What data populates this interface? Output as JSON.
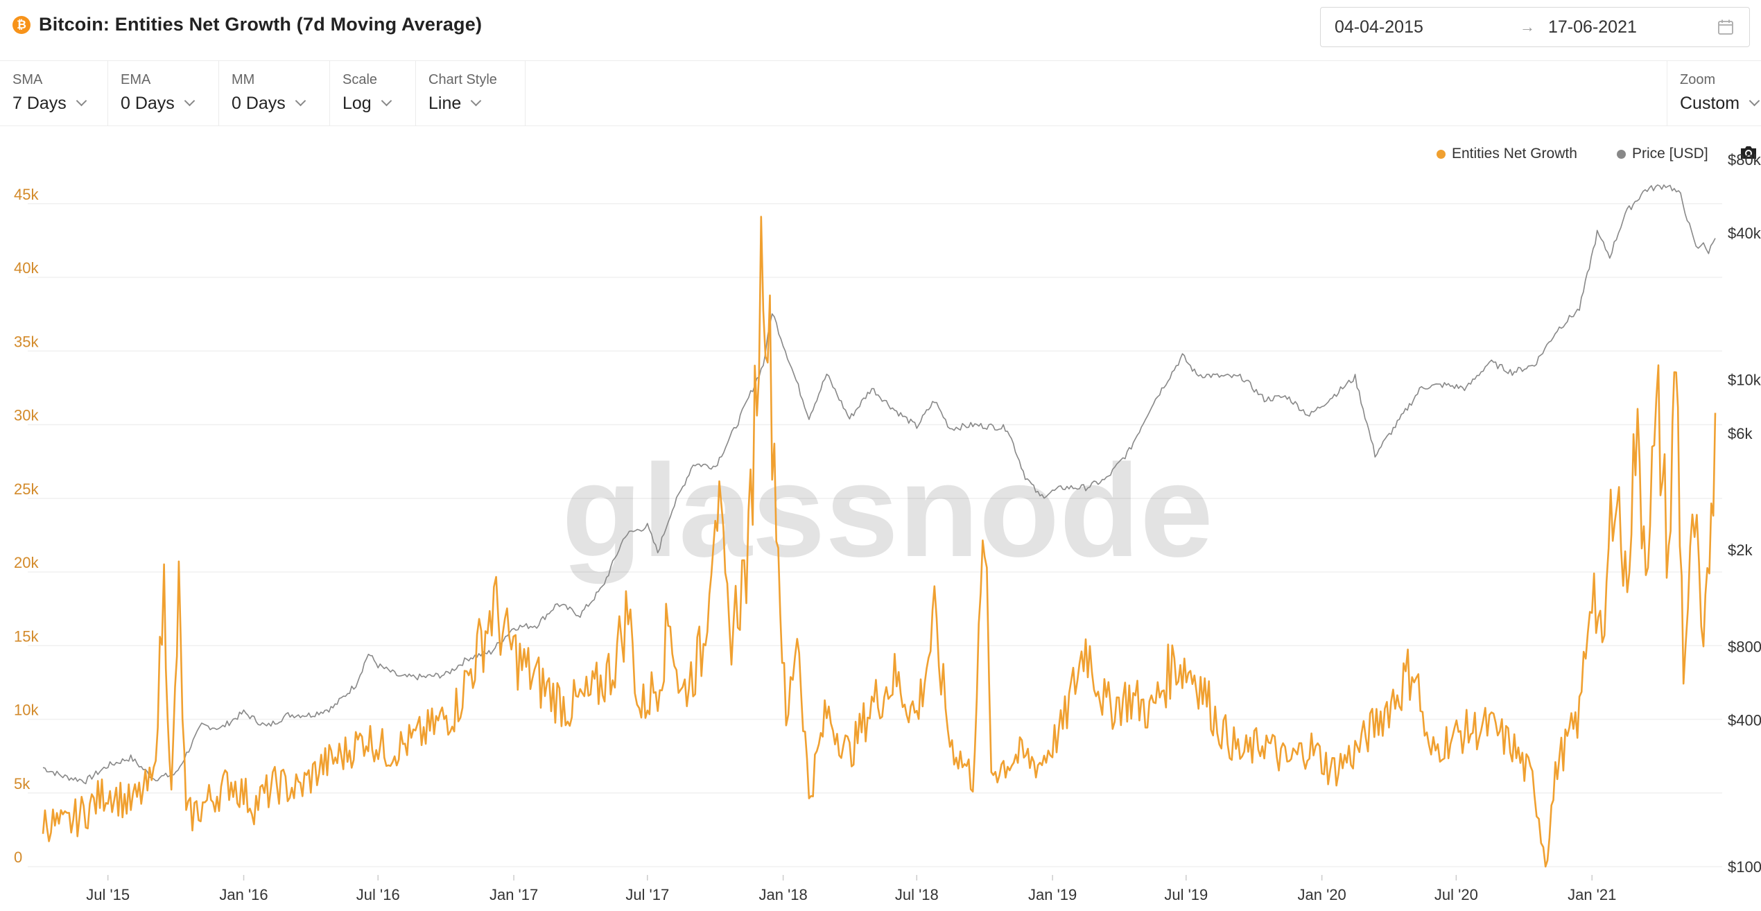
{
  "header": {
    "title": "Bitcoin: Entities Net Growth (7d Moving Average)",
    "coin_icon": "bitcoin-icon",
    "date_from": "04-04-2015",
    "date_arrow": "→",
    "date_to": "17-06-2021",
    "calendar_icon": "calendar-icon"
  },
  "controls": [
    {
      "label": "SMA",
      "value": "7 Days"
    },
    {
      "label": "EMA",
      "value": "0 Days"
    },
    {
      "label": "MM",
      "value": "0 Days"
    },
    {
      "label": "Scale",
      "value": "Log"
    },
    {
      "label": "Chart Style",
      "value": "Line"
    }
  ],
  "zoom": {
    "label": "Zoom",
    "value": "Custom"
  },
  "legend": [
    {
      "name": "Entities Net Growth",
      "color": "#f0a030"
    },
    {
      "name": "Price [USD]",
      "color": "#888888"
    }
  ],
  "camera_icon": "camera-icon",
  "watermark": "glassnode",
  "chart_data": {
    "type": "line",
    "x_ticks": [
      "Jul '15",
      "Jan '16",
      "Jul '16",
      "Jan '17",
      "Jul '17",
      "Jan '18",
      "Jul '18",
      "Jan '19",
      "Jul '19",
      "Jan '20",
      "Jul '20",
      "Jan '21"
    ],
    "y_left": {
      "ticks": [
        "0",
        "5k",
        "10k",
        "15k",
        "20k",
        "25k",
        "30k",
        "35k",
        "40k",
        "45k"
      ],
      "range": [
        0,
        48000
      ],
      "scale": "linear"
    },
    "y_right": {
      "ticks": [
        "$100",
        "$400",
        "$800",
        "$2k",
        "$6k",
        "$10k",
        "$40k",
        "$80k"
      ],
      "range": [
        100,
        80000
      ],
      "scale": "log"
    },
    "x_range": [
      "2015-04-04",
      "2021-06-17"
    ],
    "grid": true,
    "legend_position": "top-right",
    "series": [
      {
        "name": "Entities Net Growth",
        "color": "#f0a030",
        "axis": "left",
        "points": [
          [
            "2015-04-04",
            3200
          ],
          [
            "2015-05-01",
            2600
          ],
          [
            "2015-06-01",
            3800
          ],
          [
            "2015-07-01",
            5200
          ],
          [
            "2015-08-01",
            4200
          ],
          [
            "2015-09-01",
            5800
          ],
          [
            "2015-09-15",
            19000
          ],
          [
            "2015-09-25",
            4500
          ],
          [
            "2015-10-05",
            18500
          ],
          [
            "2015-10-15",
            3200
          ],
          [
            "2015-11-15",
            4500
          ],
          [
            "2015-12-15",
            5800
          ],
          [
            "2016-01-15",
            4200
          ],
          [
            "2016-02-15",
            5600
          ],
          [
            "2016-03-15",
            5200
          ],
          [
            "2016-04-15",
            6800
          ],
          [
            "2016-05-15",
            7600
          ],
          [
            "2016-06-15",
            8800
          ],
          [
            "2016-07-15",
            7800
          ],
          [
            "2016-08-15",
            8500
          ],
          [
            "2016-09-15",
            9500
          ],
          [
            "2016-10-15",
            10800
          ],
          [
            "2016-11-15",
            14800
          ],
          [
            "2016-12-05",
            17800
          ],
          [
            "2016-12-20",
            15500
          ],
          [
            "2017-01-15",
            13500
          ],
          [
            "2017-02-15",
            12000
          ],
          [
            "2017-03-15",
            10800
          ],
          [
            "2017-04-15",
            11500
          ],
          [
            "2017-05-15",
            13500
          ],
          [
            "2017-06-05",
            17500
          ],
          [
            "2017-06-20",
            10500
          ],
          [
            "2017-07-15",
            12500
          ],
          [
            "2017-08-01",
            17000
          ],
          [
            "2017-08-15",
            11500
          ],
          [
            "2017-09-15",
            14800
          ],
          [
            "2017-10-01",
            26000
          ],
          [
            "2017-10-20",
            15500
          ],
          [
            "2017-11-15",
            21000
          ],
          [
            "2017-12-05",
            43800
          ],
          [
            "2017-12-20",
            28000
          ],
          [
            "2018-01-05",
            9000
          ],
          [
            "2018-01-20",
            16500
          ],
          [
            "2018-02-05",
            4800
          ],
          [
            "2018-03-01",
            10500
          ],
          [
            "2018-04-01",
            7600
          ],
          [
            "2018-05-01",
            11000
          ],
          [
            "2018-06-01",
            12800
          ],
          [
            "2018-07-01",
            10200
          ],
          [
            "2018-07-25",
            16500
          ],
          [
            "2018-08-15",
            8500
          ],
          [
            "2018-09-15",
            6000
          ],
          [
            "2018-10-01",
            23200
          ],
          [
            "2018-10-10",
            6500
          ],
          [
            "2018-11-15",
            7500
          ],
          [
            "2018-12-15",
            7000
          ],
          [
            "2019-01-15",
            9500
          ],
          [
            "2019-02-15",
            15200
          ],
          [
            "2019-03-15",
            10800
          ],
          [
            "2019-04-15",
            11500
          ],
          [
            "2019-05-15",
            10500
          ],
          [
            "2019-06-15",
            14000
          ],
          [
            "2019-07-15",
            13000
          ],
          [
            "2019-08-15",
            9500
          ],
          [
            "2019-09-15",
            7500
          ],
          [
            "2019-10-15",
            8500
          ],
          [
            "2019-11-15",
            7000
          ],
          [
            "2019-12-15",
            8200
          ],
          [
            "2020-01-15",
            6500
          ],
          [
            "2020-02-15",
            7800
          ],
          [
            "2020-03-15",
            9800
          ],
          [
            "2020-04-15",
            12000
          ],
          [
            "2020-05-05",
            13800
          ],
          [
            "2020-05-25",
            7500
          ],
          [
            "2020-06-15",
            8500
          ],
          [
            "2020-07-15",
            9200
          ],
          [
            "2020-08-15",
            9500
          ],
          [
            "2020-09-15",
            8200
          ],
          [
            "2020-10-15",
            5500
          ],
          [
            "2020-10-30",
            500
          ],
          [
            "2020-11-15",
            7000
          ],
          [
            "2020-12-15",
            10200
          ],
          [
            "2021-01-01",
            20000
          ],
          [
            "2021-01-15",
            13800
          ],
          [
            "2021-02-01",
            27800
          ],
          [
            "2021-02-15",
            18800
          ],
          [
            "2021-03-01",
            29000
          ],
          [
            "2021-03-15",
            22000
          ],
          [
            "2021-04-01",
            30200
          ],
          [
            "2021-04-15",
            21000
          ],
          [
            "2021-04-25",
            34800
          ],
          [
            "2021-05-05",
            13500
          ],
          [
            "2021-05-20",
            23500
          ],
          [
            "2021-06-01",
            13200
          ],
          [
            "2021-06-17",
            30800
          ]
        ]
      },
      {
        "name": "Price [USD]",
        "color": "#888888",
        "axis": "right",
        "points": [
          [
            "2015-04-04",
            255
          ],
          [
            "2015-05-01",
            235
          ],
          [
            "2015-06-01",
            225
          ],
          [
            "2015-07-01",
            260
          ],
          [
            "2015-08-01",
            280
          ],
          [
            "2015-09-01",
            230
          ],
          [
            "2015-10-01",
            240
          ],
          [
            "2015-11-05",
            380
          ],
          [
            "2015-12-01",
            370
          ],
          [
            "2016-01-01",
            430
          ],
          [
            "2016-02-01",
            375
          ],
          [
            "2016-03-01",
            420
          ],
          [
            "2016-04-01",
            420
          ],
          [
            "2016-05-01",
            450
          ],
          [
            "2016-06-01",
            560
          ],
          [
            "2016-06-18",
            750
          ],
          [
            "2016-07-01",
            670
          ],
          [
            "2016-08-01",
            600
          ],
          [
            "2016-09-01",
            600
          ],
          [
            "2016-10-01",
            615
          ],
          [
            "2016-11-01",
            720
          ],
          [
            "2016-12-01",
            760
          ],
          [
            "2017-01-01",
            960
          ],
          [
            "2017-02-01",
            980
          ],
          [
            "2017-03-01",
            1200
          ],
          [
            "2017-04-01",
            1080
          ],
          [
            "2017-05-01",
            1400
          ],
          [
            "2017-06-01",
            2300
          ],
          [
            "2017-07-01",
            2500
          ],
          [
            "2017-07-15",
            1950
          ],
          [
            "2017-08-01",
            2800
          ],
          [
            "2017-09-01",
            4500
          ],
          [
            "2017-10-01",
            4400
          ],
          [
            "2017-11-01",
            6700
          ],
          [
            "2017-12-05",
            11500
          ],
          [
            "2017-12-17",
            19000
          ],
          [
            "2018-01-01",
            14000
          ],
          [
            "2018-02-05",
            7000
          ],
          [
            "2018-03-01",
            10500
          ],
          [
            "2018-04-01",
            6900
          ],
          [
            "2018-05-01",
            9200
          ],
          [
            "2018-06-01",
            7500
          ],
          [
            "2018-07-01",
            6400
          ],
          [
            "2018-07-25",
            8200
          ],
          [
            "2018-08-15",
            6300
          ],
          [
            "2018-09-15",
            6500
          ],
          [
            "2018-10-15",
            6400
          ],
          [
            "2018-11-01",
            6300
          ],
          [
            "2018-11-25",
            4000
          ],
          [
            "2018-12-15",
            3300
          ],
          [
            "2019-01-15",
            3600
          ],
          [
            "2019-02-15",
            3600
          ],
          [
            "2019-03-15",
            3900
          ],
          [
            "2019-04-15",
            5100
          ],
          [
            "2019-05-15",
            7800
          ],
          [
            "2019-06-26",
            12500
          ],
          [
            "2019-07-15",
            10500
          ],
          [
            "2019-08-15",
            10300
          ],
          [
            "2019-09-15",
            10200
          ],
          [
            "2019-10-15",
            8300
          ],
          [
            "2019-11-15",
            8500
          ],
          [
            "2019-12-15",
            7100
          ],
          [
            "2020-01-15",
            8500
          ],
          [
            "2020-02-15",
            10200
          ],
          [
            "2020-03-13",
            4900
          ],
          [
            "2020-04-15",
            6800
          ],
          [
            "2020-05-15",
            9300
          ],
          [
            "2020-06-15",
            9500
          ],
          [
            "2020-07-15",
            9200
          ],
          [
            "2020-08-15",
            11800
          ],
          [
            "2020-09-15",
            10700
          ],
          [
            "2020-10-15",
            11500
          ],
          [
            "2020-11-15",
            16000
          ],
          [
            "2020-12-15",
            19500
          ],
          [
            "2021-01-08",
            40000
          ],
          [
            "2021-01-25",
            32000
          ],
          [
            "2021-02-15",
            48000
          ],
          [
            "2021-03-14",
            60000
          ],
          [
            "2021-04-14",
            63000
          ],
          [
            "2021-05-01",
            57000
          ],
          [
            "2021-05-19",
            37000
          ],
          [
            "2021-05-25",
            34000
          ],
          [
            "2021-06-01",
            37000
          ],
          [
            "2021-06-08",
            33000
          ],
          [
            "2021-06-17",
            38000
          ]
        ]
      }
    ]
  }
}
